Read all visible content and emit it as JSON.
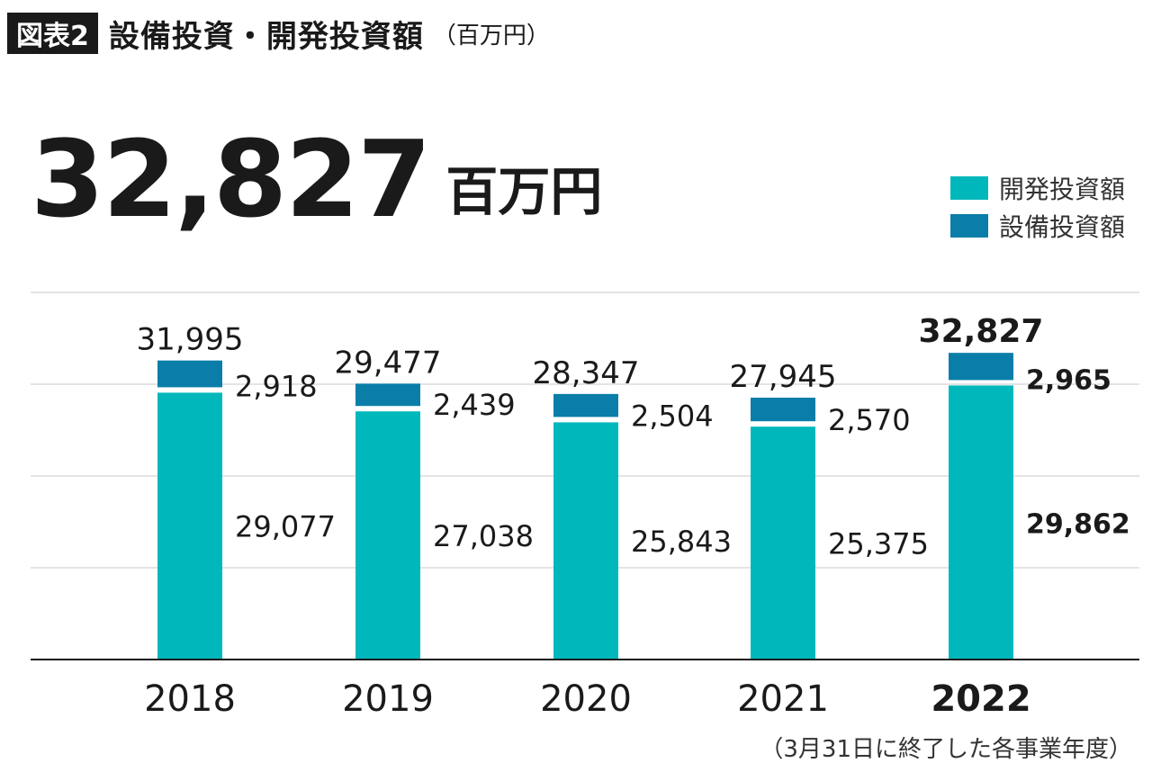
{
  "header": {
    "badge": "図表2",
    "title": "設備投資・開発投資額",
    "unit": "（百万円）"
  },
  "highlight": {
    "value": "32,827",
    "unit": "百万円"
  },
  "legend": [
    {
      "label": "開発投資額",
      "color": "#00b8bb"
    },
    {
      "label": "設備投資額",
      "color": "#0a7ea8"
    }
  ],
  "note": "（3月31日に終了した各事業年度）",
  "colors": {
    "dev": "#00b8bb",
    "capex": "#0a7ea8",
    "grid": "#c8c8c8",
    "axis": "#1a1a1a"
  },
  "chart_data": {
    "type": "bar",
    "stacked": true,
    "categories": [
      "2018",
      "2019",
      "2020",
      "2021",
      "2022"
    ],
    "highlight_category": "2022",
    "series": [
      {
        "name": "開発投資額",
        "values": [
          29077,
          27038,
          25843,
          25375,
          29862
        ],
        "labels": [
          "29,077",
          "27,038",
          "25,843",
          "25,375",
          "29,862"
        ]
      },
      {
        "name": "設備投資額",
        "values": [
          2918,
          2439,
          2504,
          2570,
          2965
        ],
        "labels": [
          "2,918",
          "2,439",
          "2,504",
          "2,570",
          "2,965"
        ]
      }
    ],
    "totals": [
      31995,
      29477,
      28347,
      27945,
      32827
    ],
    "total_labels": [
      "31,995",
      "29,477",
      "28,347",
      "27,945",
      "32,827"
    ],
    "ylim": [
      0,
      40000
    ],
    "grid": true,
    "legend_position": "top-right"
  }
}
